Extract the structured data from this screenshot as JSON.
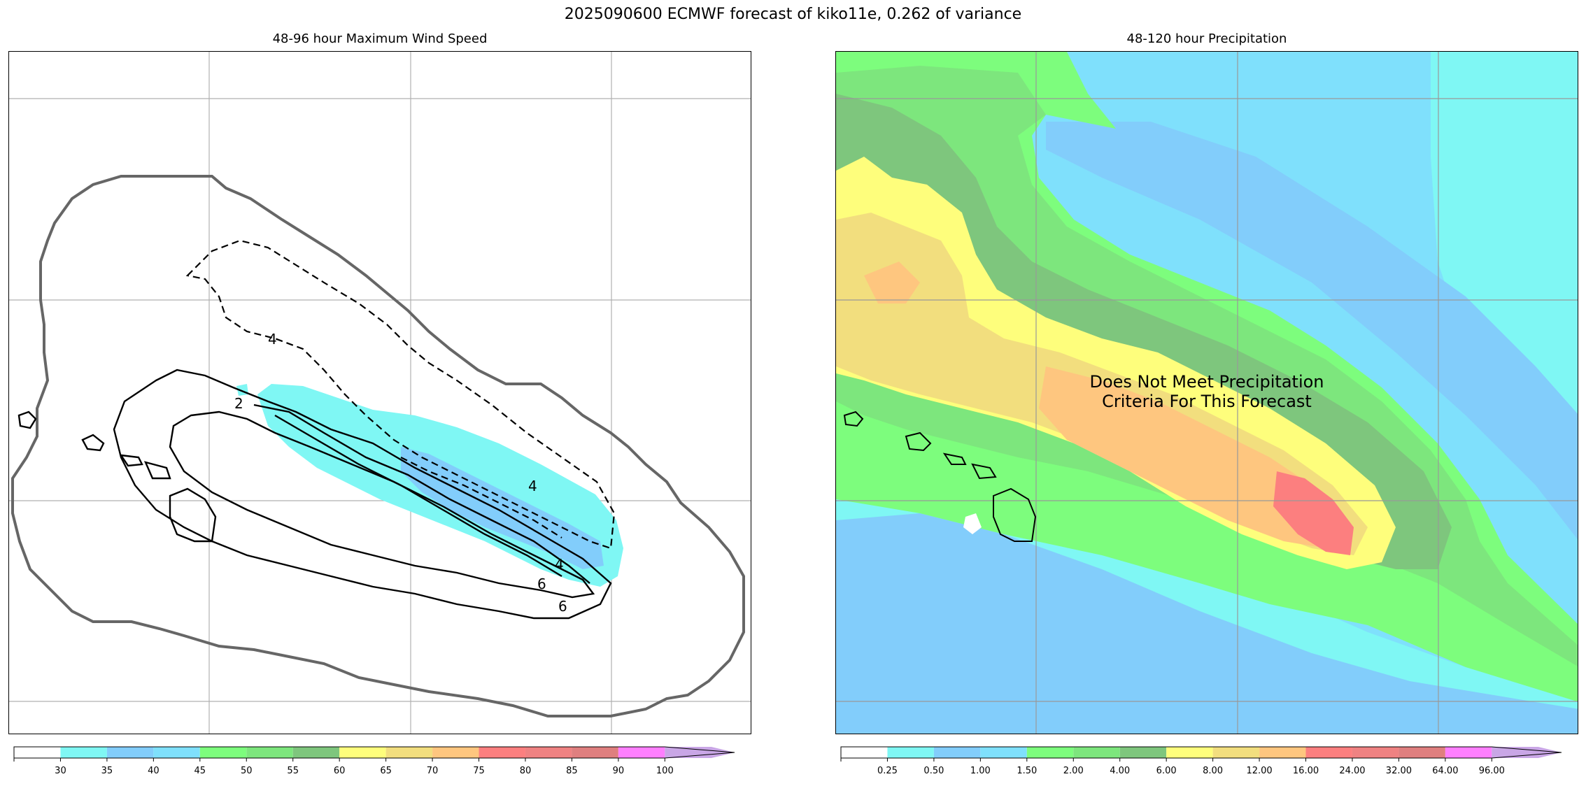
{
  "figure": {
    "title": "2025090600 ECMWF forecast of kiko11e, 0.262 of variance"
  },
  "left_panel": {
    "title": "48-96 hour Maximum Wind Speed",
    "contour_labels": [
      "2",
      "4",
      "4",
      "6",
      "4",
      "6"
    ],
    "colorbar": {
      "colors": [
        "#ffffff",
        "#7ff7f4",
        "#82cdfb",
        "#7fe0fc",
        "#7dfd7d",
        "#7de67d",
        "#7ec67d",
        "#fefe7c",
        "#f2de7e",
        "#fec67f",
        "#fc7f7f",
        "#ef8282",
        "#df7f7f",
        "#fe7ffe",
        "#c9a6e6"
      ],
      "ticks": [
        "30",
        "35",
        "40",
        "45",
        "50",
        "55",
        "60",
        "65",
        "70",
        "75",
        "80",
        "85",
        "90",
        "100"
      ]
    }
  },
  "right_panel": {
    "title": "48-120 hour Precipitation",
    "annotation": "Does Not Meet Precipitation\nCriteria For This Forecast",
    "colorbar": {
      "colors": [
        "#ffffff",
        "#7ff7f4",
        "#82cdfb",
        "#7fe0fc",
        "#7dfd7d",
        "#7de67d",
        "#7ec67d",
        "#fefe7c",
        "#f2de7e",
        "#fec67f",
        "#fc7f7f",
        "#ef8282",
        "#df7f7f",
        "#fe7ffe",
        "#c9a6e6"
      ],
      "ticks": [
        "0.25",
        "0.50",
        "1.00",
        "1.50",
        "2.00",
        "4.00",
        "6.00",
        "8.00",
        "12.00",
        "16.00",
        "24.00",
        "32.00",
        "64.00",
        "96.00"
      ]
    }
  }
}
